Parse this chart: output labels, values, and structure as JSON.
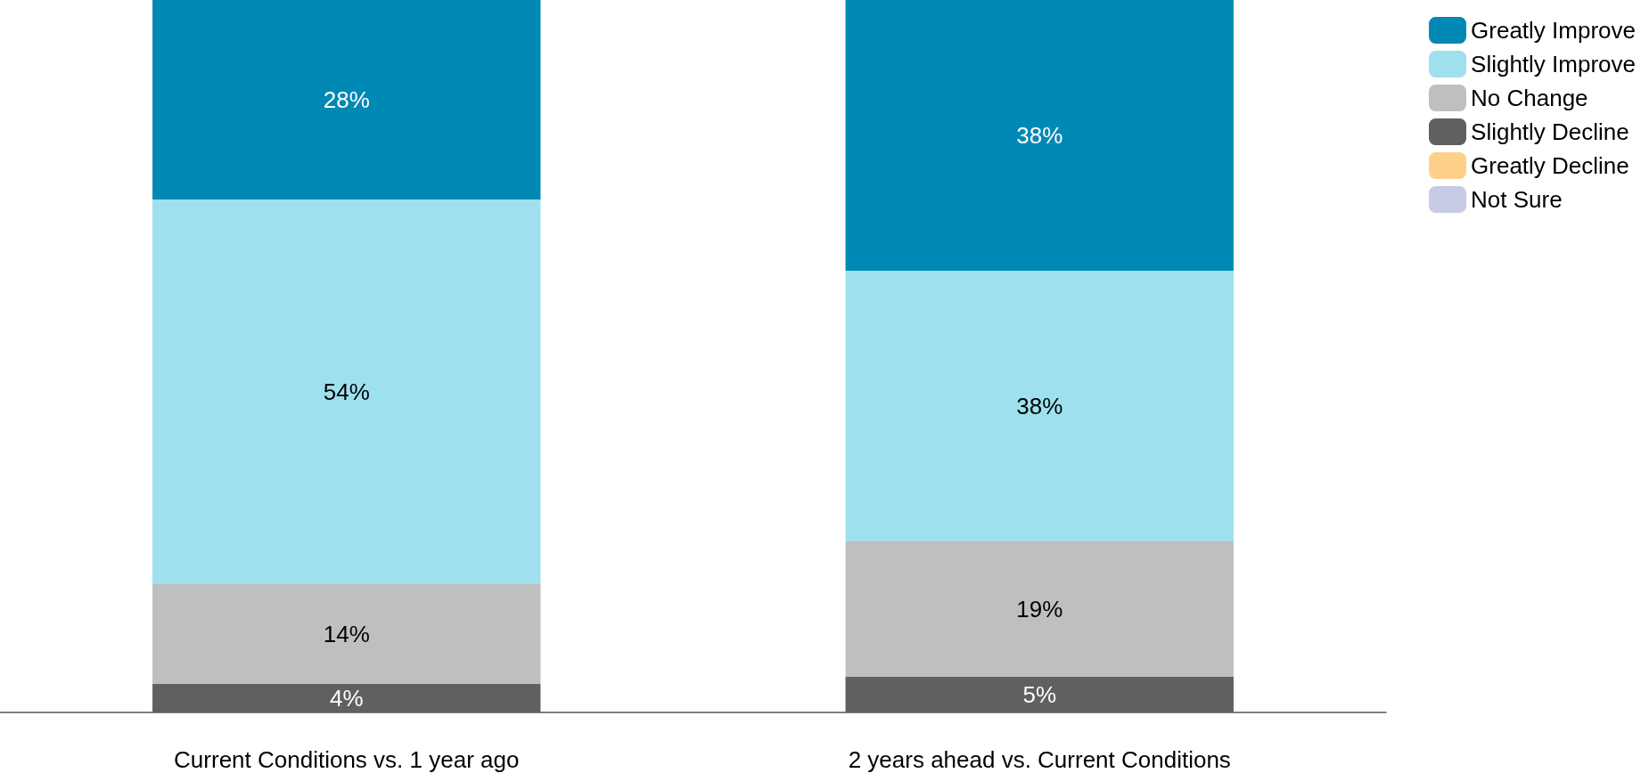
{
  "chart_data": {
    "type": "bar",
    "stacked": true,
    "categories": [
      "Current Conditions vs. 1 year ago",
      "2 years ahead vs. Current Conditions"
    ],
    "tick_labels": "x",
    "legend": "top right",
    "series": [
      {
        "name": "Not Sure",
        "color": "#c8cbe6",
        "values": [
          0,
          0
        ],
        "value_labels": [
          null,
          null
        ]
      },
      {
        "name": "Greatly Decline",
        "color": "#ffd08a",
        "values": [
          0,
          0
        ],
        "value_labels": [
          null,
          null
        ]
      },
      {
        "name": "Slightly Decline",
        "color": "#606060",
        "values": [
          4,
          5
        ],
        "value_labels": [
          "4%",
          "5%"
        ]
      },
      {
        "name": "No Change",
        "color": "#bfbfbf",
        "values": [
          14,
          19
        ],
        "value_labels": [
          "14%",
          "19%"
        ]
      },
      {
        "name": "Slightly Improve",
        "color": "#9ee0ee",
        "values": [
          54,
          38
        ],
        "value_labels": [
          "54%",
          "38%"
        ]
      },
      {
        "name": "Greatly Improve",
        "color": "#0089b4",
        "values": [
          28,
          38
        ],
        "value_labels": [
          "28%",
          "38%"
        ]
      }
    ]
  }
}
